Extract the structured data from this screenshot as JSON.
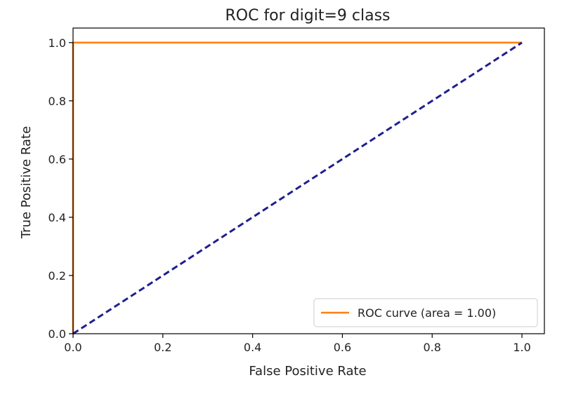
{
  "chart_data": {
    "type": "line",
    "title": "ROC for digit=9 class",
    "xlabel": "False Positive Rate",
    "ylabel": "True Positive Rate",
    "xlim": [
      0.0,
      1.05
    ],
    "ylim": [
      0.0,
      1.05
    ],
    "xticks": [
      "0.0",
      "0.2",
      "0.4",
      "0.6",
      "0.8",
      "1.0"
    ],
    "yticks": [
      "0.0",
      "0.2",
      "0.4",
      "0.6",
      "0.8",
      "1.0"
    ],
    "grid": false,
    "legend_position": "lower-right",
    "series": [
      {
        "name": "ROC curve (area = 1.00)",
        "x": [
          0.0,
          0.0,
          1.0
        ],
        "y": [
          0.0,
          1.0,
          1.0
        ],
        "color": "#ff7f0e",
        "style": "solid"
      },
      {
        "x": [
          0.0,
          1.0
        ],
        "y": [
          0.0,
          1.0
        ],
        "color": "#1f1f8f",
        "style": "dashed"
      }
    ]
  }
}
